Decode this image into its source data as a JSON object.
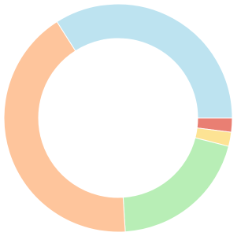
{
  "chart_data": {
    "type": "donut",
    "values": [
      2,
      2,
      20,
      42,
      34
    ],
    "colors": [
      "#e97f73",
      "#fde394",
      "#b8eeb6",
      "#fec59c",
      "#bde3f0"
    ]
  }
}
